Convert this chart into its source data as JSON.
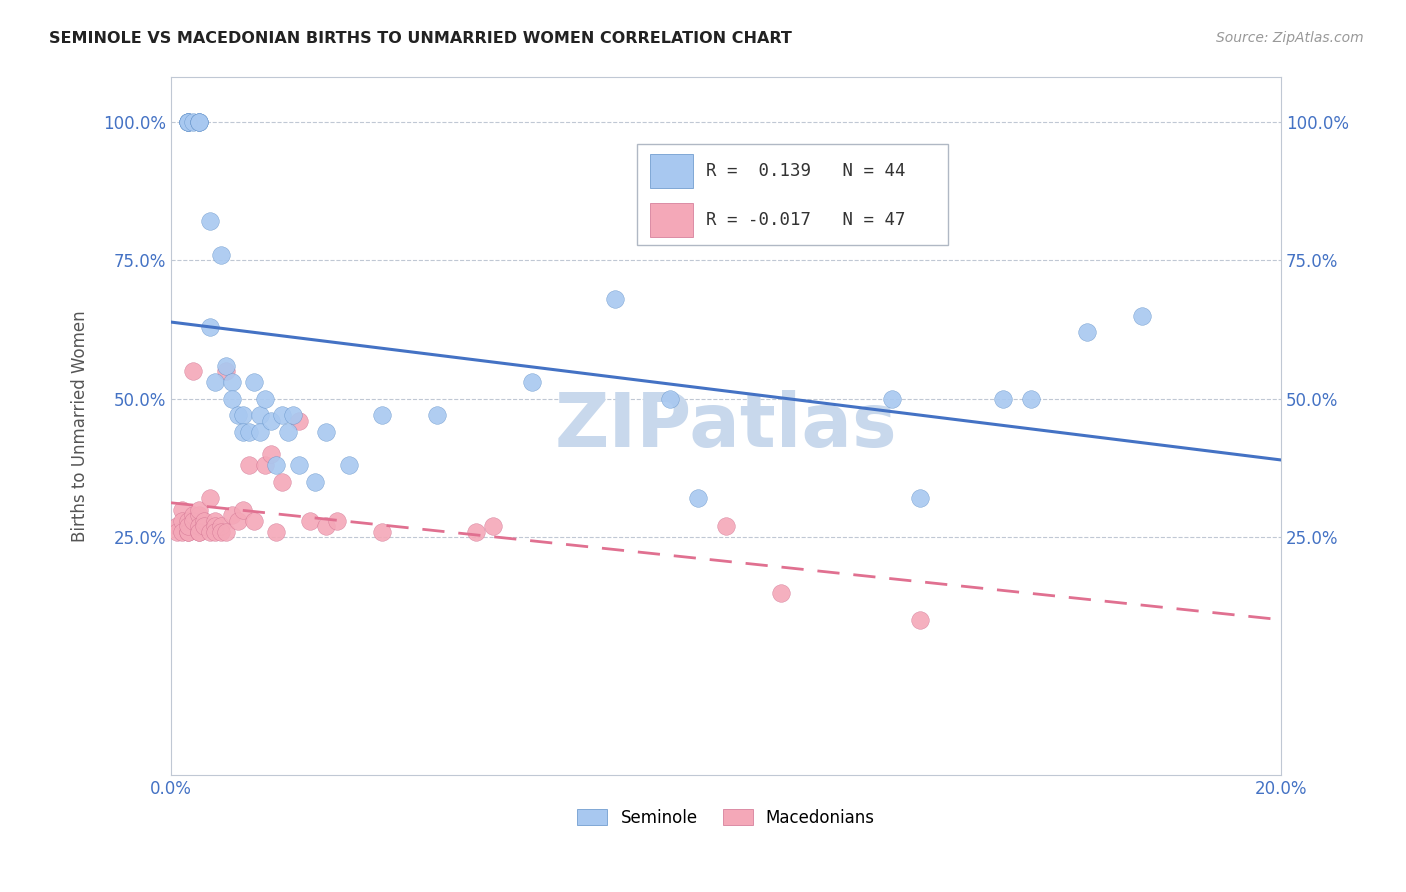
{
  "title": "SEMINOLE VS MACEDONIAN BIRTHS TO UNMARRIED WOMEN CORRELATION CHART",
  "source": "Source: ZipAtlas.com",
  "ylabel": "Births to Unmarried Women",
  "xlim": [
    0.0,
    0.2
  ],
  "ylim": [
    -0.18,
    1.08
  ],
  "ytick_vals": [
    0.0,
    0.25,
    0.5,
    0.75,
    1.0
  ],
  "ytick_labels": [
    "",
    "25.0%",
    "50.0%",
    "75.0%",
    "100.0%"
  ],
  "xtick_vals": [
    0.0,
    0.04,
    0.08,
    0.12,
    0.16,
    0.2
  ],
  "xtick_labels": [
    "0.0%",
    "",
    "",
    "",
    "",
    "20.0%"
  ],
  "seminole_color": "#A8C8F0",
  "macedonian_color": "#F4A8B8",
  "trend_seminole_color": "#4472C4",
  "trend_macedonian_color": "#E07090",
  "watermark_color": "#C8D8EC",
  "legend_R_seminole": "R =  0.139",
  "legend_N_seminole": "N = 44",
  "legend_R_macedonian": "R = -0.017",
  "legend_N_macedonian": "N = 47",
  "seminole_x": [
    0.003,
    0.003,
    0.003,
    0.003,
    0.004,
    0.005,
    0.005,
    0.005,
    0.007,
    0.007,
    0.008,
    0.009,
    0.01,
    0.011,
    0.011,
    0.012,
    0.013,
    0.013,
    0.014,
    0.015,
    0.016,
    0.016,
    0.017,
    0.018,
    0.019,
    0.02,
    0.021,
    0.022,
    0.023,
    0.026,
    0.028,
    0.032,
    0.038,
    0.048,
    0.065,
    0.08,
    0.09,
    0.095,
    0.13,
    0.135,
    0.15,
    0.155,
    0.165,
    0.175
  ],
  "seminole_y": [
    1.0,
    1.0,
    1.0,
    1.0,
    1.0,
    1.0,
    1.0,
    1.0,
    0.82,
    0.63,
    0.53,
    0.76,
    0.56,
    0.53,
    0.5,
    0.47,
    0.47,
    0.44,
    0.44,
    0.53,
    0.47,
    0.44,
    0.5,
    0.46,
    0.38,
    0.47,
    0.44,
    0.47,
    0.38,
    0.35,
    0.44,
    0.38,
    0.47,
    0.47,
    0.53,
    0.68,
    0.5,
    0.32,
    0.5,
    0.32,
    0.5,
    0.5,
    0.62,
    0.65
  ],
  "macedonian_x": [
    0.001,
    0.001,
    0.002,
    0.002,
    0.002,
    0.003,
    0.003,
    0.003,
    0.003,
    0.004,
    0.004,
    0.004,
    0.005,
    0.005,
    0.005,
    0.005,
    0.005,
    0.006,
    0.006,
    0.007,
    0.007,
    0.008,
    0.008,
    0.008,
    0.009,
    0.009,
    0.01,
    0.01,
    0.011,
    0.012,
    0.013,
    0.014,
    0.015,
    0.017,
    0.018,
    0.019,
    0.02,
    0.023,
    0.025,
    0.028,
    0.03,
    0.038,
    0.055,
    0.058,
    0.1,
    0.11,
    0.135
  ],
  "macedonian_y": [
    0.27,
    0.26,
    0.3,
    0.28,
    0.26,
    0.28,
    0.26,
    0.26,
    0.27,
    0.55,
    0.29,
    0.28,
    0.29,
    0.26,
    0.27,
    0.3,
    0.26,
    0.28,
    0.27,
    0.32,
    0.26,
    0.28,
    0.27,
    0.26,
    0.27,
    0.26,
    0.55,
    0.26,
    0.29,
    0.28,
    0.3,
    0.38,
    0.28,
    0.38,
    0.4,
    0.26,
    0.35,
    0.46,
    0.28,
    0.27,
    0.28,
    0.26,
    0.26,
    0.27,
    0.27,
    0.15,
    0.1
  ]
}
